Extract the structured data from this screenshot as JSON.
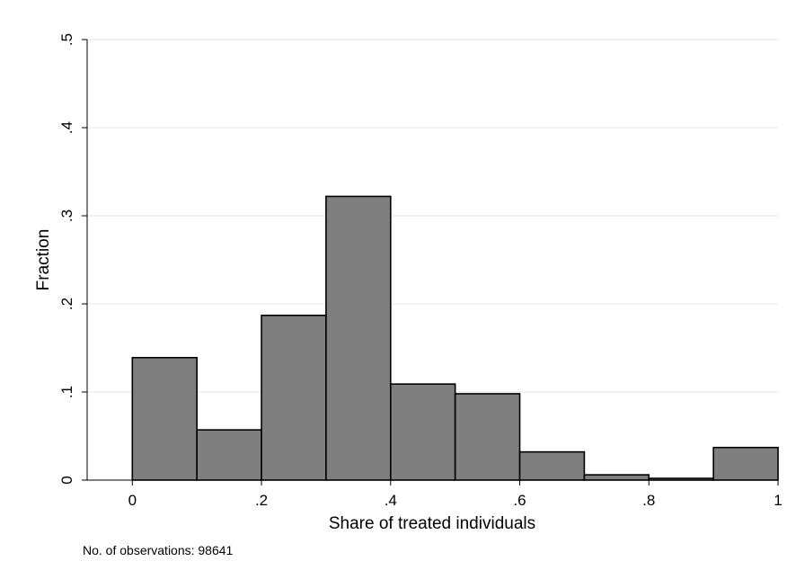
{
  "chart_data": {
    "type": "bar",
    "subtype": "histogram",
    "bins": [
      {
        "x0": 0.0,
        "x1": 0.1,
        "value": 0.139
      },
      {
        "x0": 0.1,
        "x1": 0.2,
        "value": 0.057
      },
      {
        "x0": 0.2,
        "x1": 0.3,
        "value": 0.187
      },
      {
        "x0": 0.3,
        "x1": 0.4,
        "value": 0.322
      },
      {
        "x0": 0.4,
        "x1": 0.5,
        "value": 0.109
      },
      {
        "x0": 0.5,
        "x1": 0.6,
        "value": 0.098
      },
      {
        "x0": 0.6,
        "x1": 0.7,
        "value": 0.032
      },
      {
        "x0": 0.7,
        "x1": 0.8,
        "value": 0.006
      },
      {
        "x0": 0.8,
        "x1": 0.9,
        "value": 0.002
      },
      {
        "x0": 0.9,
        "x1": 1.0,
        "value": 0.037
      }
    ],
    "xlabel": "Share of treated individuals",
    "ylabel": "Fraction",
    "xlim": [
      -0.07,
      1.0
    ],
    "ylim": [
      0,
      0.5
    ],
    "x_ticks": [
      {
        "value": 0.0,
        "label": "0"
      },
      {
        "value": 0.2,
        "label": ".2"
      },
      {
        "value": 0.4,
        "label": ".4"
      },
      {
        "value": 0.6,
        "label": ".6"
      },
      {
        "value": 0.8,
        "label": ".8"
      },
      {
        "value": 1.0,
        "label": "1"
      }
    ],
    "y_ticks": [
      {
        "value": 0.0,
        "label": "0"
      },
      {
        "value": 0.1,
        "label": ".1"
      },
      {
        "value": 0.2,
        "label": ".2"
      },
      {
        "value": 0.3,
        "label": ".3"
      },
      {
        "value": 0.4,
        "label": ".4"
      },
      {
        "value": 0.5,
        "label": ".5"
      }
    ],
    "grid": "horizontal",
    "bar_color": "#7f7f7f",
    "bar_edge_color": "#000000",
    "grid_color": "#eaeaea",
    "note": "No. of observations: 98641"
  }
}
